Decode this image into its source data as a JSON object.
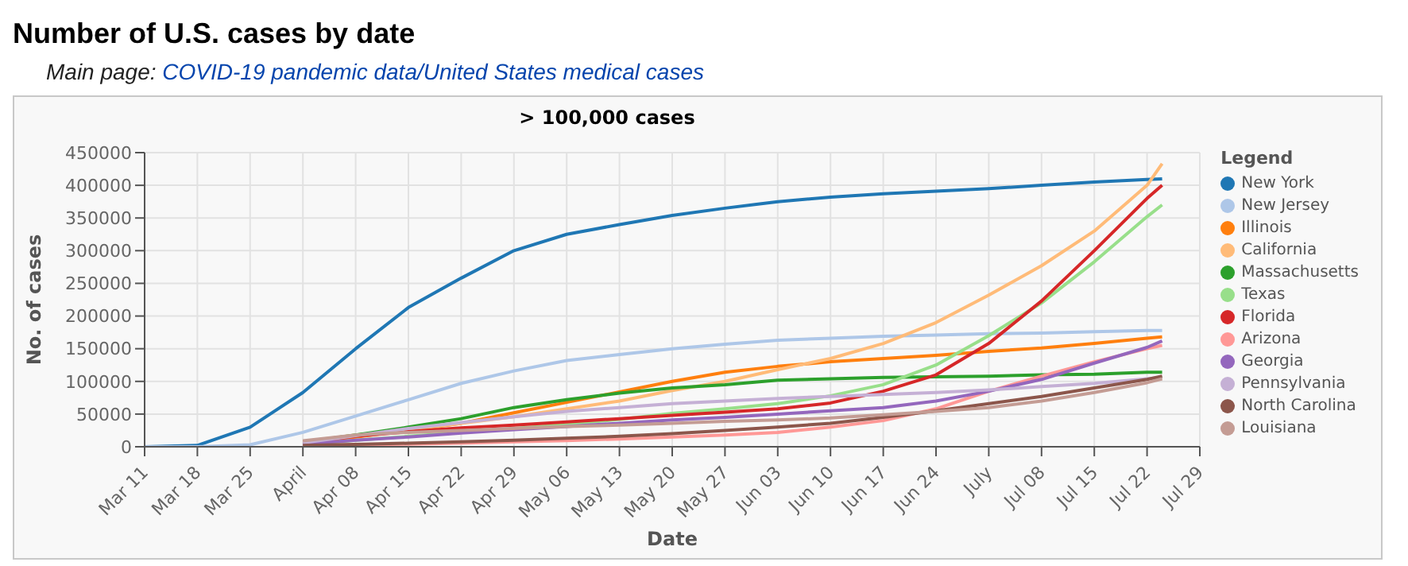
{
  "chart_data": {
    "type": "line",
    "title": "Number of U.S. cases by date",
    "subtitle": "Main page: COVID-19 pandemic data/United States medical cases",
    "annotations": [
      "> 100,000 cases"
    ],
    "xlabel": "Date",
    "ylabel": "No. of cases",
    "legend_title": "Legend",
    "legend": "right",
    "grid": true,
    "marker": "none",
    "x": [
      "--03-11",
      "--03-18",
      "--03-25",
      "--04-01",
      "--04-08",
      "--04-15",
      "--04-22",
      "--04-29",
      "--05-06",
      "--05-13",
      "--05-20",
      "--05-27",
      "--06-03",
      "--06-10",
      "--06-17",
      "--06-24",
      "--07-01",
      "--07-08",
      "--07-15",
      "--07-22",
      "--07-24"
    ],
    "xlim": [
      "--03-11",
      "--07-29"
    ],
    "xticks": [
      {
        "value": "--03-11",
        "label": "Mar 11"
      },
      {
        "value": "--03-18",
        "label": "Mar 18"
      },
      {
        "value": "--03-25",
        "label": "Mar 25"
      },
      {
        "value": "--04-01",
        "label": "April"
      },
      {
        "value": "--04-08",
        "label": "Apr 08"
      },
      {
        "value": "--04-15",
        "label": "Apr 15"
      },
      {
        "value": "--04-22",
        "label": "Apr 22"
      },
      {
        "value": "--04-29",
        "label": "Apr 29"
      },
      {
        "value": "--05-06",
        "label": "May 06"
      },
      {
        "value": "--05-13",
        "label": "May 13"
      },
      {
        "value": "--05-20",
        "label": "May 20"
      },
      {
        "value": "--05-27",
        "label": "May 27"
      },
      {
        "value": "--06-03",
        "label": "Jun 03"
      },
      {
        "value": "--06-10",
        "label": "Jun 10"
      },
      {
        "value": "--06-17",
        "label": "Jun 17"
      },
      {
        "value": "--06-24",
        "label": "Jun 24"
      },
      {
        "value": "--07-01",
        "label": "July"
      },
      {
        "value": "--07-08",
        "label": "Jul 08"
      },
      {
        "value": "--07-15",
        "label": "Jul 15"
      },
      {
        "value": "--07-22",
        "label": "Jul 22"
      },
      {
        "value": "--07-29",
        "label": "Jul 29"
      }
    ],
    "ylim": [
      0,
      450000
    ],
    "yticks": [
      0,
      50000,
      100000,
      150000,
      200000,
      250000,
      300000,
      350000,
      400000,
      450000
    ],
    "series": [
      {
        "name": "New York",
        "color": "#1f77b4",
        "values": [
          0,
          2000,
          30000,
          83000,
          150000,
          213000,
          258000,
          300000,
          325000,
          340000,
          354000,
          365000,
          375000,
          382000,
          387000,
          391000,
          395000,
          400000,
          405000,
          409000,
          410000
        ]
      },
      {
        "name": "New Jersey",
        "color": "#aec7e8",
        "values": [
          0,
          0,
          3000,
          22000,
          47000,
          72000,
          97000,
          116000,
          132000,
          141000,
          150000,
          157000,
          163000,
          166000,
          169000,
          171000,
          173000,
          174000,
          176000,
          178000,
          178000
        ]
      },
      {
        "name": "Illinois",
        "color": "#ff7f0e",
        "values": [
          null,
          null,
          null,
          6000,
          15000,
          25000,
          36000,
          52000,
          68000,
          84000,
          100000,
          114000,
          123000,
          130000,
          135000,
          140000,
          146000,
          151000,
          158000,
          166000,
          168000
        ]
      },
      {
        "name": "California",
        "color": "#ffbb78",
        "values": [
          null,
          null,
          null,
          8000,
          18000,
          26000,
          36000,
          46000,
          58000,
          70000,
          86000,
          100000,
          118000,
          135000,
          158000,
          190000,
          232000,
          277000,
          330000,
          400000,
          433000
        ]
      },
      {
        "name": "Massachusetts",
        "color": "#2ca02c",
        "values": [
          null,
          null,
          null,
          7000,
          18000,
          30000,
          43000,
          60000,
          72000,
          82000,
          90000,
          95000,
          102000,
          104000,
          106000,
          107000,
          108000,
          110000,
          111000,
          114000,
          114000
        ]
      },
      {
        "name": "Texas",
        "color": "#98df8a",
        "values": [
          null,
          null,
          null,
          3000,
          10000,
          16000,
          22000,
          28000,
          34000,
          42000,
          51000,
          58000,
          66000,
          78000,
          95000,
          125000,
          170000,
          220000,
          283000,
          352000,
          370000
        ]
      },
      {
        "name": "Florida",
        "color": "#d62728",
        "values": [
          null,
          null,
          null,
          7000,
          16000,
          23000,
          29000,
          33000,
          38000,
          43000,
          48000,
          53000,
          58000,
          67000,
          85000,
          110000,
          158000,
          223000,
          300000,
          380000,
          400000
        ]
      },
      {
        "name": "Arizona",
        "color": "#ff9896",
        "values": [
          null,
          null,
          null,
          2000,
          3000,
          4000,
          5500,
          7500,
          9500,
          12000,
          15000,
          18000,
          22000,
          30000,
          40000,
          58000,
          85000,
          108000,
          130000,
          150000,
          155000
        ]
      },
      {
        "name": "Georgia",
        "color": "#9467bd",
        "values": [
          null,
          null,
          null,
          4000,
          10000,
          15000,
          21000,
          26000,
          31000,
          36000,
          41000,
          45000,
          50000,
          55000,
          60000,
          70000,
          85000,
          103000,
          128000,
          152000,
          162000
        ]
      },
      {
        "name": "Pennsylvania",
        "color": "#c5b0d5",
        "values": [
          null,
          null,
          null,
          6000,
          17000,
          28000,
          37000,
          46000,
          54000,
          60000,
          66000,
          70000,
          74000,
          77000,
          80000,
          83000,
          87000,
          92000,
          97000,
          104000,
          106000
        ]
      },
      {
        "name": "North Carolina",
        "color": "#8c564b",
        "values": [
          null,
          null,
          null,
          2000,
          3500,
          5500,
          7500,
          10000,
          13000,
          16000,
          20000,
          25000,
          30000,
          36000,
          45000,
          55000,
          66000,
          77000,
          90000,
          103000,
          108000
        ]
      },
      {
        "name": "Louisiana",
        "color": "#c49c94",
        "values": [
          null,
          null,
          null,
          9000,
          18000,
          22000,
          25000,
          28000,
          31000,
          33000,
          36000,
          39000,
          41000,
          44000,
          49000,
          54000,
          60000,
          70000,
          83000,
          98000,
          104000
        ]
      }
    ]
  }
}
